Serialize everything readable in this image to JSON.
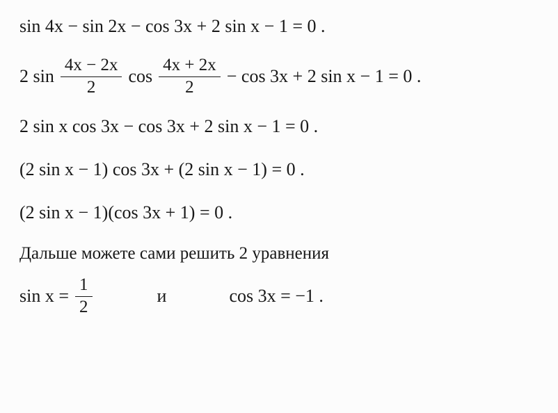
{
  "font": {
    "family": "Times New Roman",
    "base_size_pt": 26,
    "color": "#181818"
  },
  "background_color": "#fcfcfc",
  "lines": {
    "eq1": "sin 4x − sin 2x − cos 3x + 2 sin x − 1 = 0 .",
    "eq2_pre": "2 sin",
    "eq2_frac1_num": "4x − 2x",
    "eq2_frac1_den": "2",
    "eq2_mid": "cos",
    "eq2_frac2_num": "4x + 2x",
    "eq2_frac2_den": "2",
    "eq2_post": "− cos 3x + 2 sin x − 1 = 0 .",
    "eq3": "2 sin x cos 3x − cos 3x + 2 sin x − 1 = 0 .",
    "eq4": "(2 sin x − 1) cos 3x + (2 sin x − 1) = 0 .",
    "eq5": "(2 sin x − 1)(cos 3x + 1) = 0 .",
    "text": "Дальше можете сами решить 2 уравнения",
    "eq6a_pre": "sin x =",
    "eq6a_num": "1",
    "eq6a_den": "2",
    "and": "и",
    "eq6b": "cos 3x = −1 ."
  }
}
